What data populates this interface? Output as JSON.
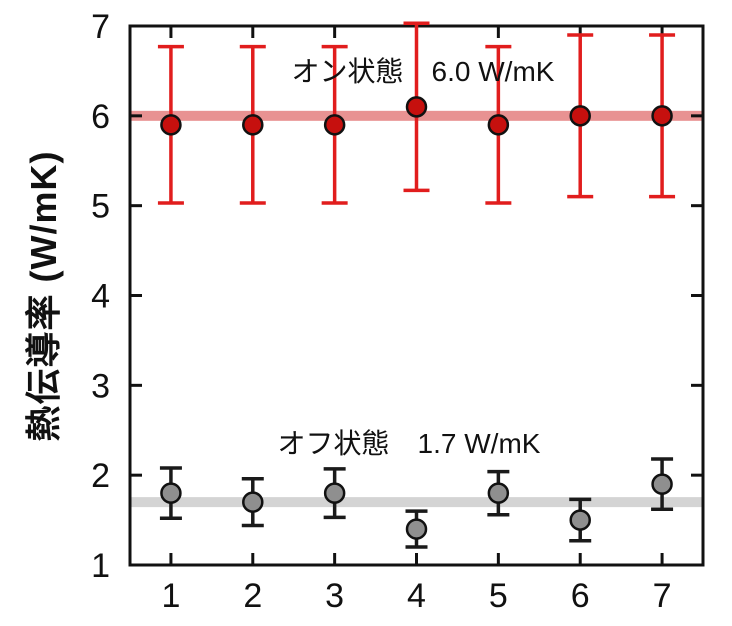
{
  "figure": {
    "background": "#ffffff"
  },
  "chart_data": {
    "type": "scatter",
    "title": "",
    "xlabel": "",
    "ylabel": "熱伝導率 (W/mK)",
    "xlim": [
      0.5,
      7.5
    ],
    "ylim": [
      1,
      7
    ],
    "xticks": [
      1,
      2,
      3,
      4,
      5,
      6,
      7
    ],
    "yticks": [
      1,
      2,
      3,
      4,
      5,
      6,
      7
    ],
    "grid": false,
    "axis_color": "#111111",
    "x": [
      1,
      2,
      3,
      4,
      5,
      6,
      7
    ],
    "series": [
      {
        "id": "on-state",
        "name": "オン状態",
        "mean_label": "6.0 W/mK",
        "values": [
          5.9,
          5.9,
          5.9,
          6.1,
          5.9,
          6.0,
          6.0
        ],
        "errors": [
          0.87,
          0.87,
          0.87,
          0.93,
          0.87,
          0.9,
          0.9
        ],
        "band_value": 6.0,
        "marker_color": "#c6100e",
        "marker_outline": "#111111",
        "errorbar_color": "#e11d1d",
        "band_color": "#e89292",
        "marker_radius": 9.5,
        "cap_halfwidth": 13
      },
      {
        "id": "off-state",
        "name": "オフ状態",
        "mean_label": "1.7 W/mK",
        "values": [
          1.8,
          1.7,
          1.8,
          1.4,
          1.8,
          1.5,
          1.9
        ],
        "errors": [
          0.28,
          0.26,
          0.27,
          0.2,
          0.24,
          0.23,
          0.28
        ],
        "band_value": 1.7,
        "marker_color": "#8f8f8f",
        "marker_outline": "#111111",
        "errorbar_color": "#1a1a1a",
        "band_color": "#d4d4d4",
        "marker_radius": 9.5,
        "cap_halfwidth": 11
      }
    ],
    "annotations": [
      {
        "id": "on-state-annotation",
        "text": "オン状態　6.0 W/mK",
        "x": 4.07,
        "y": 6.5
      },
      {
        "id": "off-state-annotation",
        "text": "オフ状態　1.7 W/mK",
        "x": 3.9,
        "y": 2.37
      }
    ]
  }
}
